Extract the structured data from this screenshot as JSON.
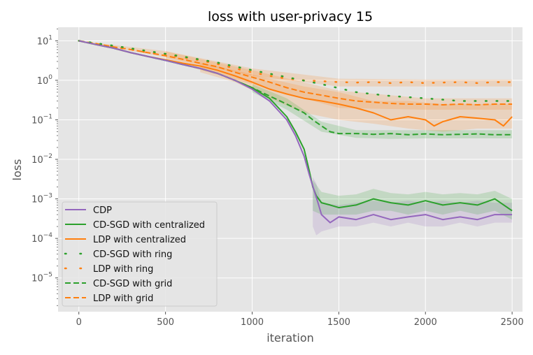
{
  "chart_data": {
    "type": "line",
    "title": "loss with user-privacy  15",
    "xlabel": "iteration",
    "ylabel": "loss",
    "xlim": [
      -120,
      2560
    ],
    "ylim": [
      1.4e-06,
      22
    ],
    "yscale": "log",
    "grid": true,
    "legend_position": "lower-left",
    "x_ticks": [
      0,
      500,
      1000,
      1500,
      2000,
      2500
    ],
    "y_ticks": [
      {
        "value": 1e-05,
        "base": "10",
        "exp": "−5"
      },
      {
        "value": 0.0001,
        "base": "10",
        "exp": "−4"
      },
      {
        "value": 0.001,
        "base": "10",
        "exp": "−3"
      },
      {
        "value": 0.01,
        "base": "10",
        "exp": "−2"
      },
      {
        "value": 0.1,
        "base": "10",
        "exp": "−1"
      },
      {
        "value": 1,
        "base": "10",
        "exp": "0"
      },
      {
        "value": 10,
        "base": "10",
        "exp": "1"
      }
    ],
    "series": [
      {
        "name": "CDP",
        "color": "#9467bd",
        "style": "solid",
        "x": [
          0,
          100,
          200,
          300,
          400,
          500,
          600,
          700,
          800,
          900,
          1000,
          1100,
          1200,
          1250,
          1300,
          1330,
          1360,
          1380,
          1400,
          1450,
          1500,
          1600,
          1700,
          1800,
          1900,
          2000,
          2100,
          2200,
          2300,
          2400,
          2500
        ],
        "y": [
          10,
          8,
          6.5,
          5,
          4,
          3.2,
          2.5,
          2.0,
          1.5,
          1.0,
          0.6,
          0.3,
          0.1,
          0.04,
          0.012,
          0.004,
          0.0015,
          0.0008,
          0.0004,
          0.00025,
          0.00035,
          0.0003,
          0.0004,
          0.0003,
          0.00035,
          0.0004,
          0.0003,
          0.00035,
          0.0003,
          0.0004,
          0.0004
        ],
        "band": {
          "x": [
            1350,
            1370,
            1400,
            1500,
            1600,
            1700,
            1800,
            1900,
            2000,
            2100,
            2200,
            2300,
            2400,
            2500
          ],
          "lo": [
            0.0002,
            0.00012,
            0.00015,
            0.0002,
            0.0002,
            0.00025,
            0.0002,
            0.00025,
            0.0002,
            0.0002,
            0.00025,
            0.0002,
            0.00025,
            0.00025
          ],
          "hi": [
            0.0035,
            0.0025,
            0.0008,
            0.0007,
            0.0008,
            0.0009,
            0.0008,
            0.0009,
            0.0008,
            0.0009,
            0.0008,
            0.0009,
            0.0008,
            0.0008
          ]
        }
      },
      {
        "name": "CD-SGD with centralized",
        "color": "#2ca02c",
        "style": "solid",
        "x": [
          0,
          100,
          200,
          300,
          400,
          500,
          600,
          700,
          800,
          900,
          1000,
          1100,
          1200,
          1250,
          1300,
          1330,
          1350,
          1370,
          1400,
          1450,
          1500,
          1600,
          1700,
          1800,
          1900,
          2000,
          2100,
          2200,
          2300,
          2400,
          2500
        ],
        "y": [
          10,
          8,
          6.5,
          5,
          4,
          3.2,
          2.5,
          2.0,
          1.5,
          1.0,
          0.65,
          0.35,
          0.12,
          0.05,
          0.018,
          0.005,
          0.002,
          0.0012,
          0.0008,
          0.0007,
          0.0006,
          0.0007,
          0.001,
          0.0008,
          0.0007,
          0.0009,
          0.0007,
          0.0008,
          0.0007,
          0.001,
          0.0005
        ],
        "band": {
          "x": [
            1350,
            1400,
            1500,
            1600,
            1700,
            1800,
            1900,
            2000,
            2100,
            2200,
            2300,
            2400,
            2500
          ],
          "lo": [
            0.0005,
            0.0004,
            0.0004,
            0.0004,
            0.0005,
            0.0005,
            0.0004,
            0.0005,
            0.0004,
            0.0005,
            0.0004,
            0.0005,
            0.0003
          ],
          "hi": [
            0.003,
            0.0015,
            0.0012,
            0.0013,
            0.0018,
            0.0014,
            0.0013,
            0.0015,
            0.0013,
            0.0014,
            0.0013,
            0.0016,
            0.001
          ]
        }
      },
      {
        "name": "LDP with centralized",
        "color": "#ff7f0e",
        "style": "solid",
        "x": [
          0,
          100,
          200,
          300,
          400,
          500,
          600,
          700,
          800,
          900,
          1000,
          1100,
          1200,
          1300,
          1400,
          1500,
          1600,
          1700,
          1800,
          1900,
          2000,
          2050,
          2100,
          2200,
          2300,
          2400,
          2450,
          2500
        ],
        "y": [
          10,
          8,
          6.5,
          5,
          4,
          3.3,
          2.7,
          2.3,
          1.8,
          1.3,
          0.9,
          0.6,
          0.45,
          0.35,
          0.3,
          0.25,
          0.2,
          0.15,
          0.1,
          0.12,
          0.1,
          0.07,
          0.09,
          0.12,
          0.11,
          0.1,
          0.07,
          0.12
        ],
        "band": {
          "x": [
            700,
            900,
            1100,
            1300,
            1500,
            1700,
            1900,
            2100,
            2300,
            2500
          ],
          "lo": [
            1.6,
            0.9,
            0.35,
            0.15,
            0.1,
            0.08,
            0.06,
            0.05,
            0.06,
            0.06
          ],
          "hi": [
            2.8,
            1.8,
            1.1,
            0.7,
            0.5,
            0.3,
            0.3,
            0.25,
            0.25,
            0.25
          ]
        }
      },
      {
        "name": "CD-SGD with ring",
        "color": "#2ca02c",
        "style": "dotted",
        "x": [
          0,
          200,
          400,
          600,
          800,
          1000,
          1200,
          1400,
          1600,
          1800,
          2000,
          2200,
          2400,
          2500
        ],
        "y": [
          10,
          7.5,
          5.5,
          4.0,
          2.8,
          1.8,
          1.2,
          0.8,
          0.5,
          0.4,
          0.35,
          0.3,
          0.3,
          0.3
        ],
        "band": null
      },
      {
        "name": "LDP with ring",
        "color": "#ff7f0e",
        "style": "dotted",
        "x": [
          0,
          100,
          200,
          300,
          400,
          500,
          600,
          700,
          800,
          900,
          1000,
          1100,
          1200,
          1300,
          1400,
          1500,
          1600,
          1700,
          1800,
          1900,
          2000,
          2100,
          2200,
          2300,
          2400,
          2500
        ],
        "y": [
          10,
          8.5,
          7,
          6,
          5,
          4.5,
          3.8,
          3.2,
          2.6,
          2.0,
          1.6,
          1.3,
          1.1,
          1.0,
          0.95,
          0.9,
          0.88,
          0.9,
          0.85,
          0.9,
          0.85,
          0.88,
          0.9,
          0.85,
          0.9,
          0.9
        ],
        "band": {
          "x": [
            0,
            500,
            1000,
            1500,
            2000,
            2500
          ],
          "lo": [
            10,
            3.8,
            1.3,
            0.7,
            0.7,
            0.7
          ],
          "hi": [
            10,
            5.5,
            2.0,
            1.1,
            1.05,
            1.05
          ]
        }
      },
      {
        "name": "CD-SGD with grid",
        "color": "#2ca02c",
        "style": "dashed",
        "x": [
          0,
          100,
          200,
          300,
          400,
          500,
          600,
          700,
          800,
          900,
          1000,
          1100,
          1200,
          1300,
          1350,
          1400,
          1450,
          1500,
          1600,
          1700,
          1800,
          1900,
          2000,
          2100,
          2200,
          2300,
          2400,
          2500
        ],
        "y": [
          10,
          8,
          6.5,
          5,
          4,
          3.2,
          2.5,
          2.0,
          1.5,
          1.0,
          0.65,
          0.4,
          0.25,
          0.15,
          0.1,
          0.07,
          0.05,
          0.045,
          0.045,
          0.043,
          0.045,
          0.042,
          0.044,
          0.042,
          0.043,
          0.044,
          0.042,
          0.042
        ],
        "band": {
          "x": [
            1000,
            1200,
            1400,
            1600,
            1800,
            2000,
            2200,
            2400,
            2500
          ],
          "lo": [
            0.5,
            0.18,
            0.05,
            0.035,
            0.033,
            0.034,
            0.034,
            0.034,
            0.034
          ],
          "hi": [
            0.8,
            0.35,
            0.09,
            0.055,
            0.055,
            0.055,
            0.055,
            0.055,
            0.055
          ]
        }
      },
      {
        "name": "LDP with grid",
        "color": "#ff7f0e",
        "style": "dashed",
        "x": [
          0,
          100,
          200,
          300,
          400,
          500,
          600,
          700,
          800,
          900,
          1000,
          1100,
          1200,
          1300,
          1400,
          1500,
          1600,
          1700,
          1800,
          1900,
          2000,
          2100,
          2200,
          2300,
          2400,
          2500
        ],
        "y": [
          10,
          8.5,
          7,
          6,
          5,
          4.2,
          3.4,
          2.7,
          2.2,
          1.6,
          1.2,
          0.9,
          0.65,
          0.5,
          0.42,
          0.35,
          0.3,
          0.28,
          0.26,
          0.25,
          0.25,
          0.24,
          0.25,
          0.24,
          0.25,
          0.25
        ],
        "band": {
          "x": [
            500,
            1000,
            1500,
            2000,
            2500
          ],
          "lo": [
            3.2,
            0.8,
            0.2,
            0.18,
            0.18
          ],
          "hi": [
            5.4,
            1.8,
            0.55,
            0.35,
            0.35
          ]
        }
      }
    ]
  }
}
